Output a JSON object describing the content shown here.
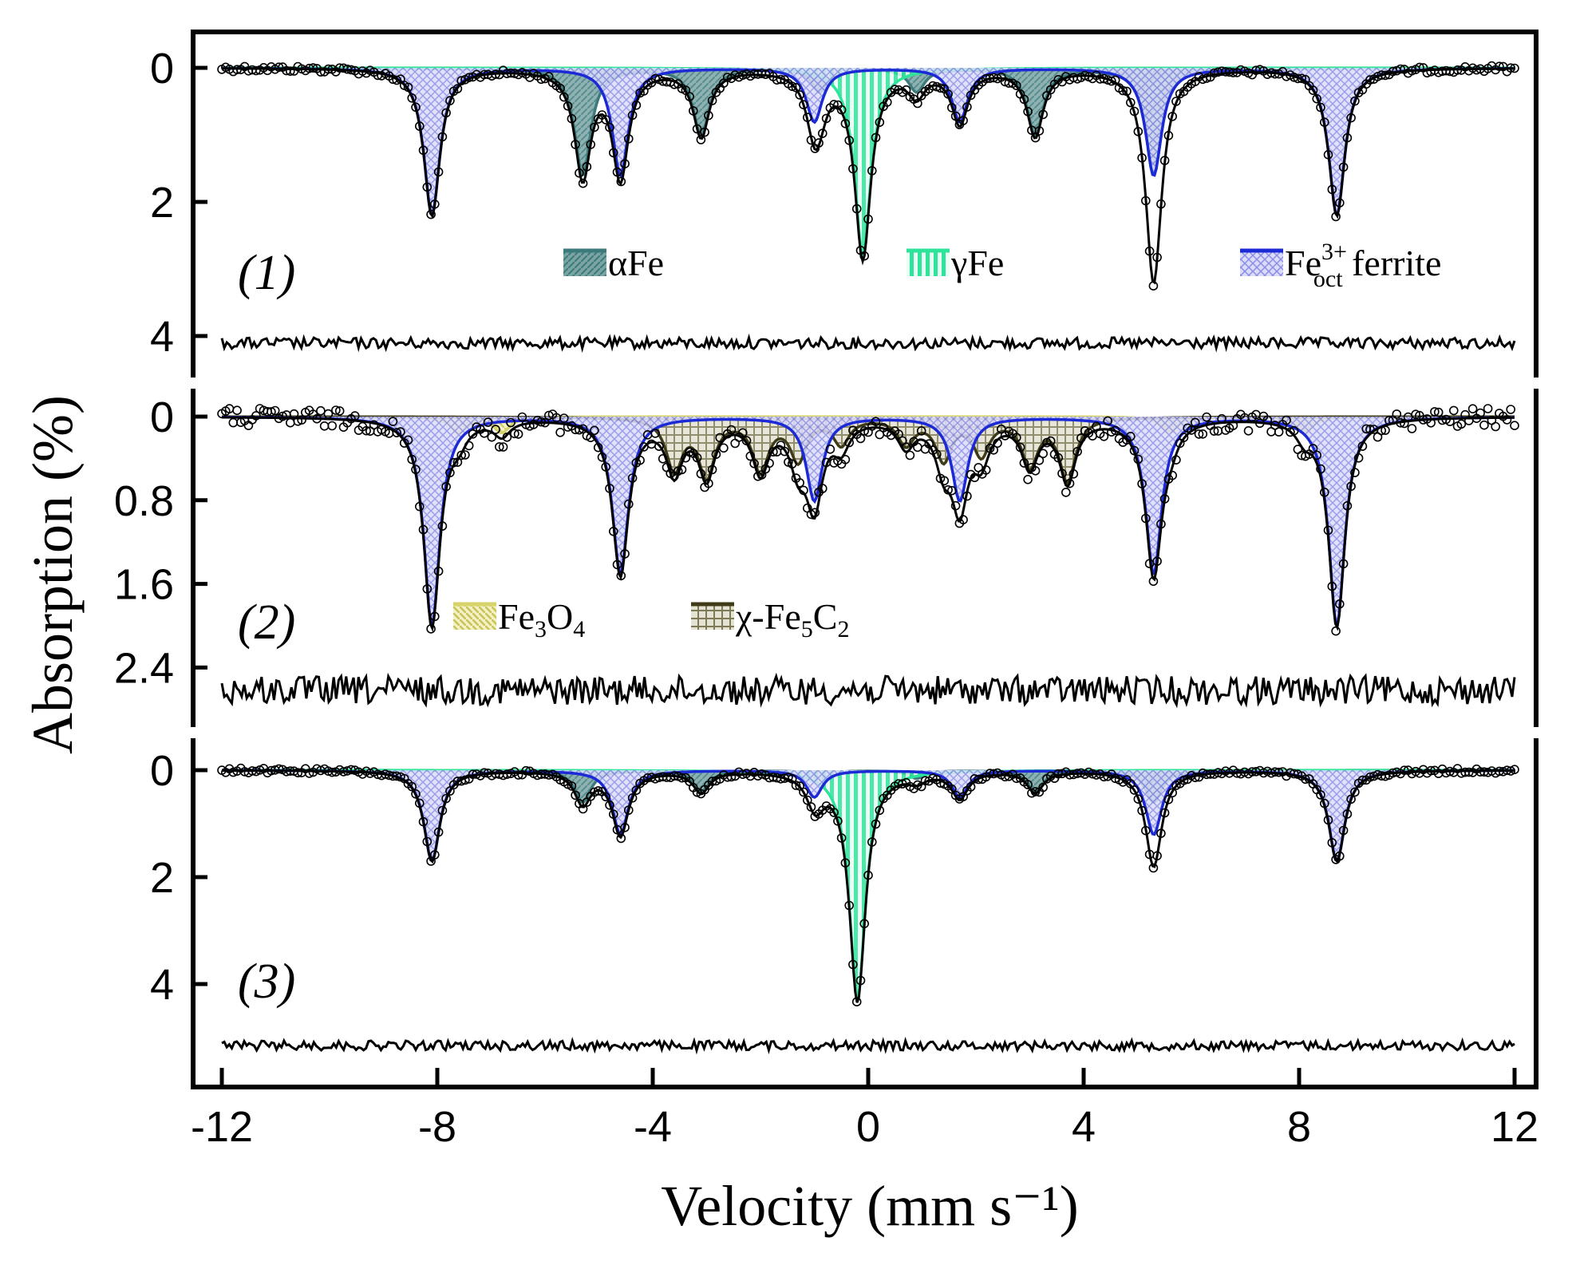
{
  "colors": {
    "alphaFe": "#3c7a7b",
    "gammaFe": "#2ee39a",
    "ferrite": "#1c2ad6",
    "ferriteFill": "#c8c8f4",
    "magnetite": "#d6d36a",
    "carbide": "#3f3b18",
    "envelope": "#000000"
  },
  "chart_data": {
    "type": "line",
    "xlabel": "Velocity (mm s⁻¹)",
    "ylabel": "Absorption (%)",
    "xlim": [
      -12,
      12
    ],
    "x_ticks": [
      "-12",
      "-8",
      "-4",
      "0",
      "4",
      "8",
      "12"
    ],
    "legend": {
      "alphaFe": "αFe",
      "gammaFe": "γFe",
      "ferrite_main": "Fe",
      "ferrite_sup": "3+",
      "ferrite_sub": "oct",
      "ferrite_tail": " ferrite",
      "magnetite_main": "Fe",
      "magnetite_s1": "3",
      "magnetite_mid": "O",
      "magnetite_s2": "4",
      "carbide_main": "χ-Fe",
      "carbide_s1": "5",
      "carbide_mid": "C",
      "carbide_s2": "2"
    },
    "panels": [
      {
        "label": "(1)",
        "ylim": [
          0,
          4.8
        ],
        "y_ticks": [
          "0",
          "2",
          "4"
        ],
        "components": [
          {
            "name": "αFe",
            "lines": [
              {
                "pos": -5.3,
                "depth": 1.6
              },
              {
                "pos": -3.1,
                "depth": 1.0
              },
              {
                "pos": -0.9,
                "depth": 0.35
              },
              {
                "pos": 0.9,
                "depth": 0.35
              },
              {
                "pos": 3.1,
                "depth": 1.0
              },
              {
                "pos": 5.3,
                "depth": 1.6
              }
            ]
          },
          {
            "name": "γFe",
            "lines": [
              {
                "pos": -0.1,
                "depth": 2.8
              }
            ]
          },
          {
            "name": "Fe3+oct ferrite",
            "lines": [
              {
                "pos": -8.1,
                "depth": 2.2
              },
              {
                "pos": -4.6,
                "depth": 1.6
              },
              {
                "pos": -1.0,
                "depth": 0.8
              },
              {
                "pos": 1.7,
                "depth": 0.8
              },
              {
                "pos": 5.3,
                "depth": 1.6
              },
              {
                "pos": 8.7,
                "depth": 2.2
              }
            ]
          }
        ]
      },
      {
        "label": "(2)",
        "ylim": [
          0,
          3.0
        ],
        "y_ticks": [
          "0",
          "0.8",
          "1.6",
          "2.4"
        ],
        "components": [
          {
            "name": "Fe3O4",
            "lines": [
              {
                "pos": -7.6,
                "depth": 0.15
              },
              {
                "pos": -6.8,
                "depth": 0.15
              },
              {
                "pos": 5.6,
                "depth": 0.15
              },
              {
                "pos": 8.1,
                "depth": 0.15
              }
            ]
          },
          {
            "name": "χ-Fe5C2",
            "lines": [
              {
                "pos": -3.6,
                "depth": 0.5
              },
              {
                "pos": -3.0,
                "depth": 0.55
              },
              {
                "pos": -2.0,
                "depth": 0.5
              },
              {
                "pos": -1.3,
                "depth": 0.4
              },
              {
                "pos": -0.5,
                "depth": 0.25
              },
              {
                "pos": 0.7,
                "depth": 0.25
              },
              {
                "pos": 1.4,
                "depth": 0.4
              },
              {
                "pos": 2.1,
                "depth": 0.35
              },
              {
                "pos": 3.0,
                "depth": 0.45
              },
              {
                "pos": 3.7,
                "depth": 0.6
              }
            ]
          },
          {
            "name": "Fe3+oct ferrite",
            "lines": [
              {
                "pos": -8.1,
                "depth": 2.0
              },
              {
                "pos": -4.6,
                "depth": 1.5
              },
              {
                "pos": -1.0,
                "depth": 0.8
              },
              {
                "pos": 1.7,
                "depth": 0.8
              },
              {
                "pos": 5.3,
                "depth": 1.5
              },
              {
                "pos": 8.7,
                "depth": 2.0
              }
            ]
          }
        ]
      },
      {
        "label": "(3)",
        "ylim": [
          0,
          5.8
        ],
        "y_ticks": [
          "0",
          "2",
          "4"
        ],
        "components": [
          {
            "name": "αFe",
            "lines": [
              {
                "pos": -5.3,
                "depth": 0.6
              },
              {
                "pos": -3.1,
                "depth": 0.4
              },
              {
                "pos": -0.9,
                "depth": 0.15
              },
              {
                "pos": 0.9,
                "depth": 0.15
              },
              {
                "pos": 3.1,
                "depth": 0.4
              },
              {
                "pos": 5.3,
                "depth": 0.6
              }
            ]
          },
          {
            "name": "γFe",
            "lines": [
              {
                "pos": -0.2,
                "depth": 4.3
              }
            ]
          },
          {
            "name": "Fe3+oct ferrite",
            "lines": [
              {
                "pos": -8.1,
                "depth": 1.7
              },
              {
                "pos": -4.6,
                "depth": 1.2
              },
              {
                "pos": -1.0,
                "depth": 0.5
              },
              {
                "pos": 1.7,
                "depth": 0.5
              },
              {
                "pos": 5.3,
                "depth": 1.2
              },
              {
                "pos": 8.7,
                "depth": 1.7
              }
            ]
          }
        ]
      }
    ]
  }
}
